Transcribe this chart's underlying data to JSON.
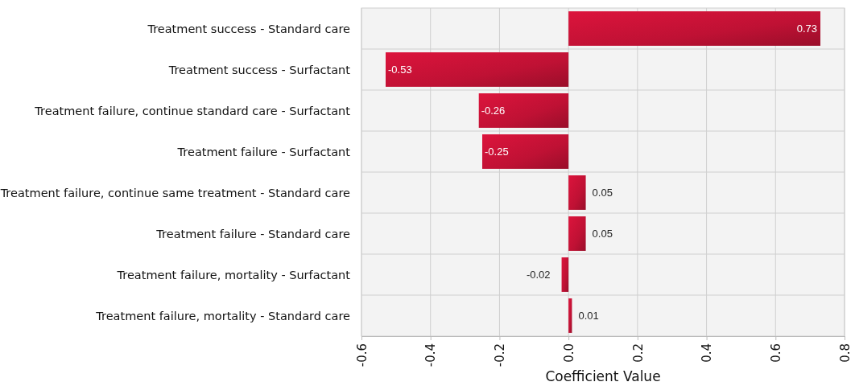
{
  "chart_data": {
    "type": "bar",
    "orientation": "horizontal",
    "xlabel": "Coefficient Value",
    "categories": [
      "Treatment success - Standard care",
      "Treatment success - Surfactant",
      "Treatment failure, continue standard care - Surfactant",
      "Treatment failure - Surfactant",
      "Treatment failure, continue same treatment - Standard care",
      "Treatment failure - Standard care",
      "Treatment failure, mortality - Surfactant",
      "Treatment failure, mortality - Standard care"
    ],
    "values": [
      0.73,
      -0.53,
      -0.26,
      -0.25,
      0.05,
      0.05,
      -0.02,
      0.01
    ],
    "color": "#dc143c",
    "xlim": [
      -0.6,
      0.8
    ],
    "xticks": [
      {
        "value": -0.6,
        "label": "-0.6"
      },
      {
        "value": -0.4,
        "label": "-0.4"
      },
      {
        "value": -0.2,
        "label": "-0.2"
      },
      {
        "value": 0,
        "label": "0.0"
      },
      {
        "value": 0.2,
        "label": "0.2"
      },
      {
        "value": 0.4,
        "label": "0.4"
      },
      {
        "value": 0.6,
        "label": "0.6"
      },
      {
        "value": 0.8,
        "label": "0.8"
      }
    ],
    "grid": true,
    "data_labels": true
  }
}
